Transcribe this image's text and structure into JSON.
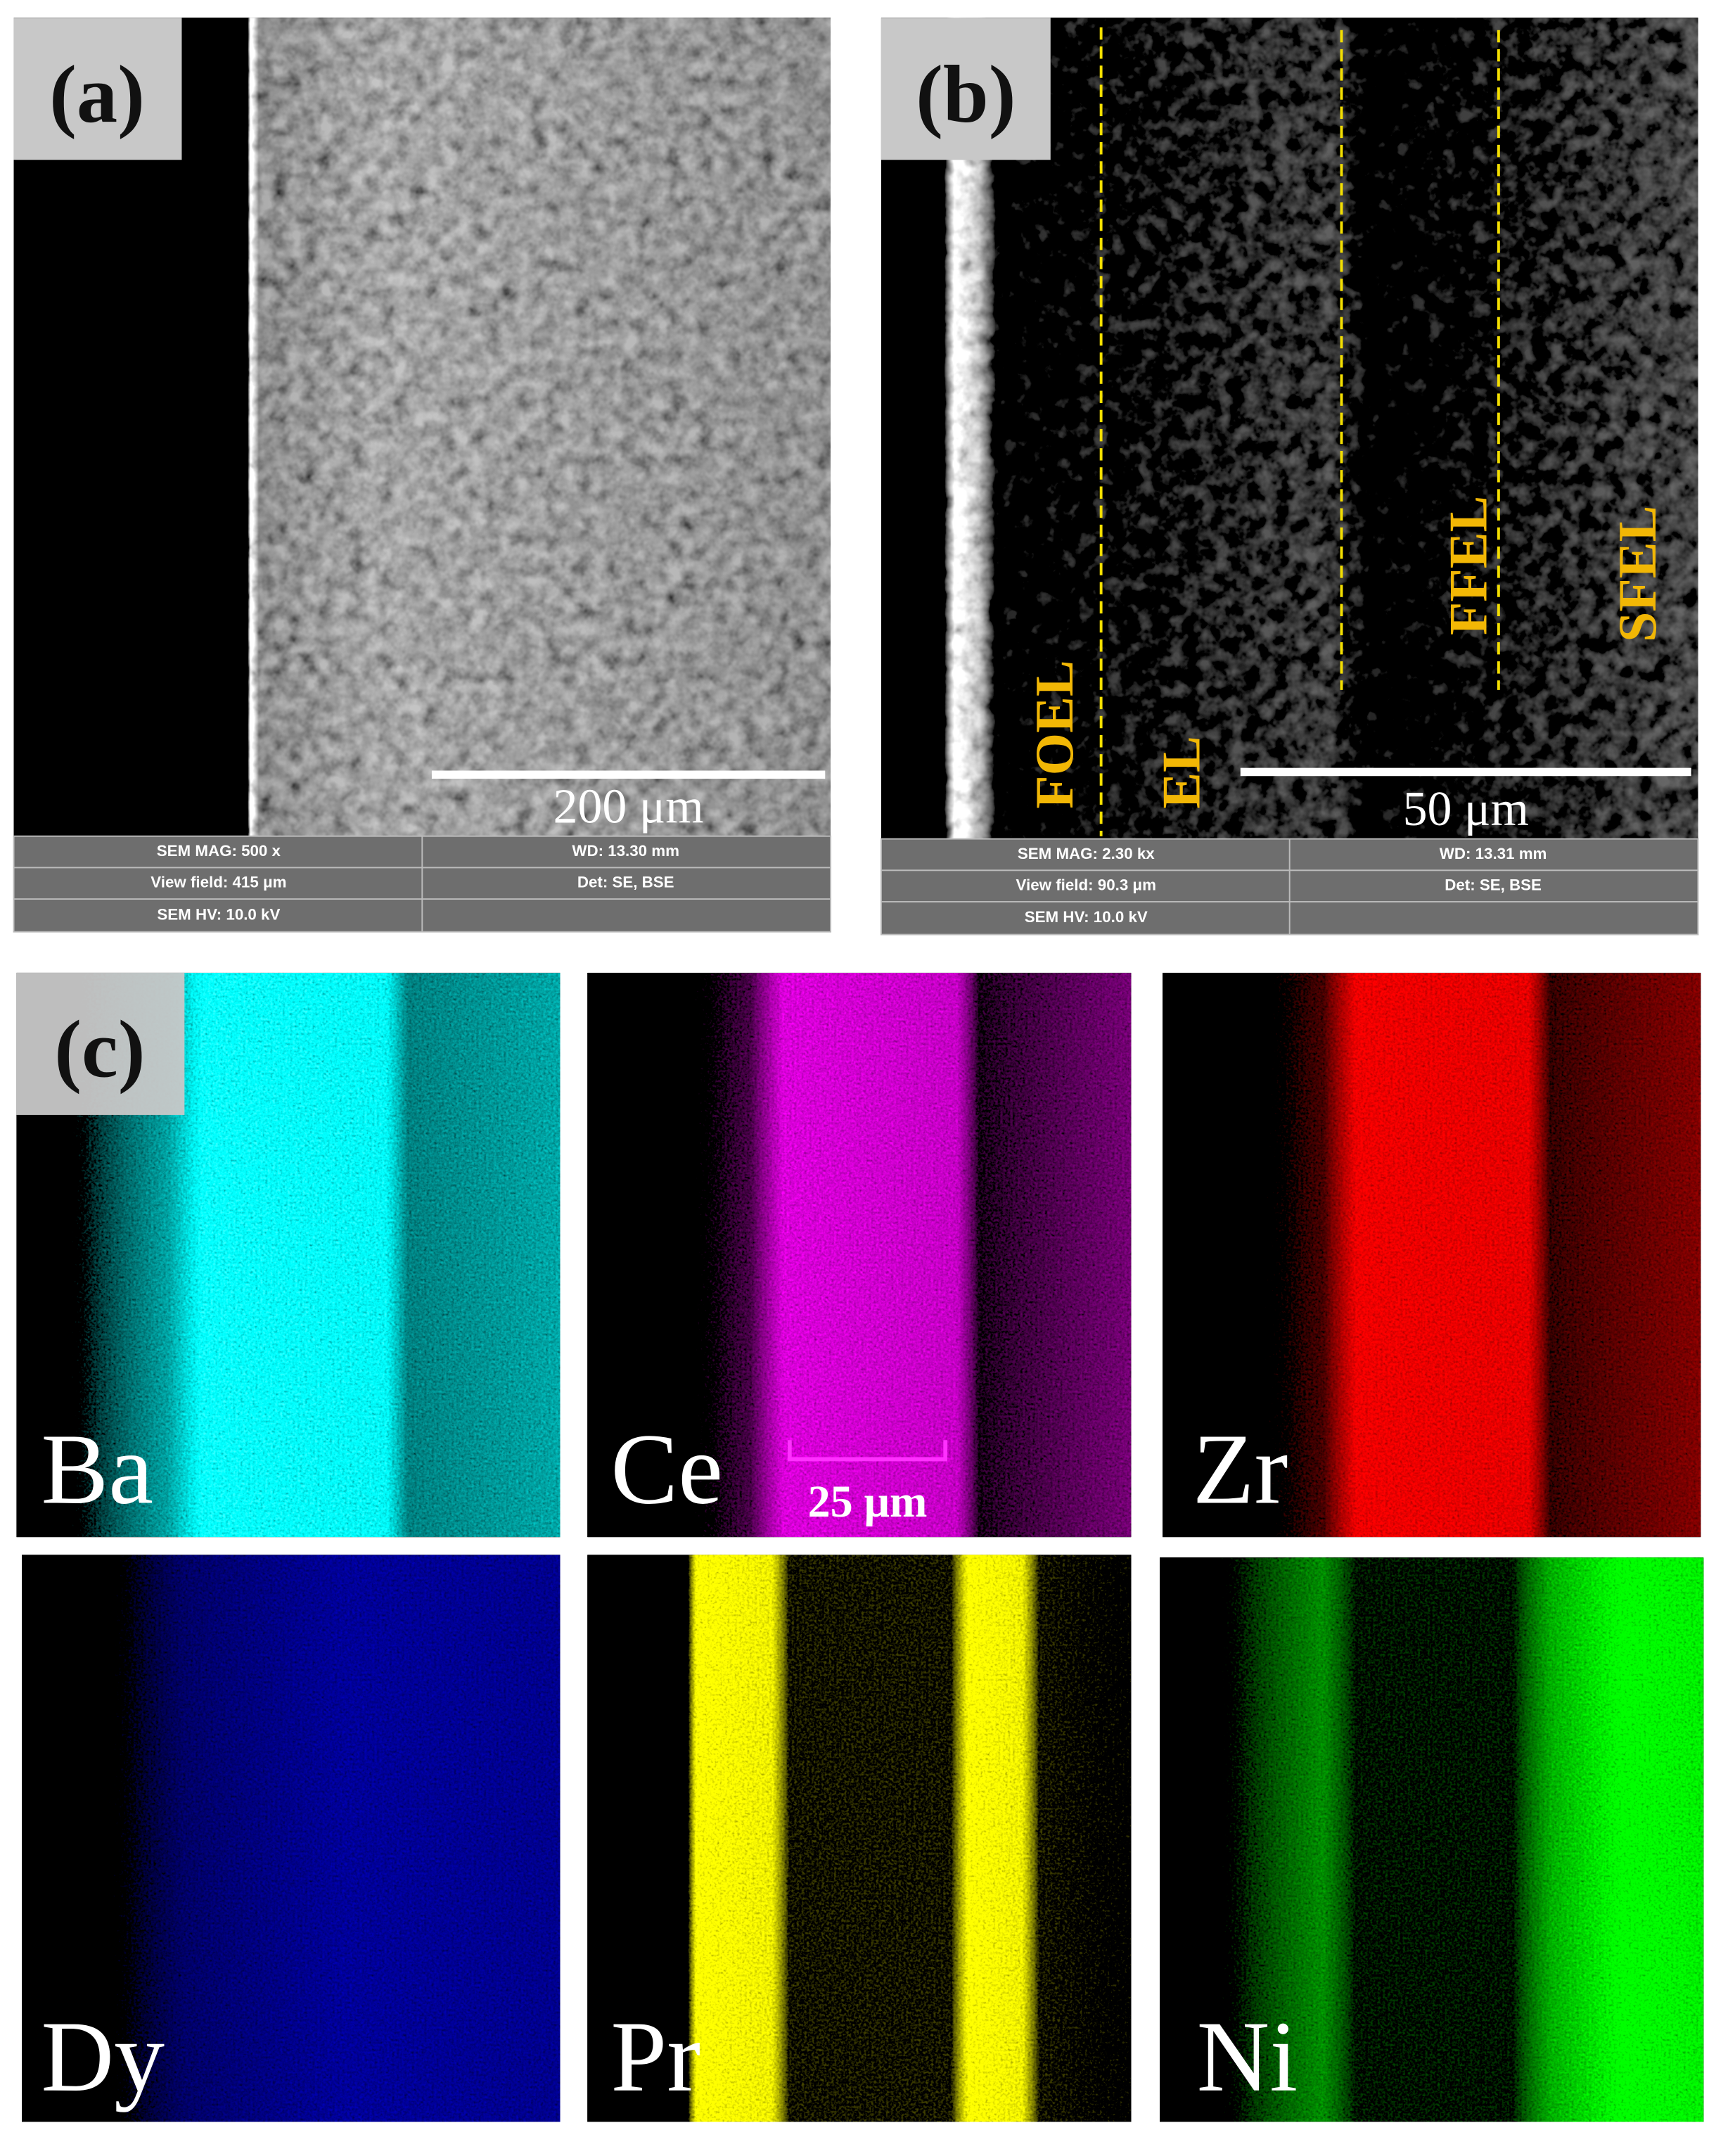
{
  "panels": {
    "a": {
      "label": "(a)",
      "scale_bar": "200 μm",
      "info": [
        [
          "SEM MAG: 500 x",
          "WD: 13.30 mm"
        ],
        [
          "View field: 415 μm",
          "Det: SE, BSE"
        ],
        [
          "SEM HV: 10.0 kV"
        ]
      ]
    },
    "b": {
      "label": "(b)",
      "layers": [
        "FOEL",
        "EL",
        "FFEL",
        "SFEL"
      ],
      "scale_bar": "50 μm",
      "info": [
        [
          "SEM MAG: 2.30 kx",
          "WD: 13.31 mm"
        ],
        [
          "View field: 90.3 μm",
          "Det: SE, BSE"
        ],
        [
          "SEM HV: 10.0 kV"
        ]
      ]
    },
    "c": {
      "label": "(c)",
      "scale_bar": "25 μm",
      "maps": [
        "Ba",
        "Ce",
        "Zr",
        "Dy",
        "Pr",
        "Ni"
      ]
    }
  }
}
